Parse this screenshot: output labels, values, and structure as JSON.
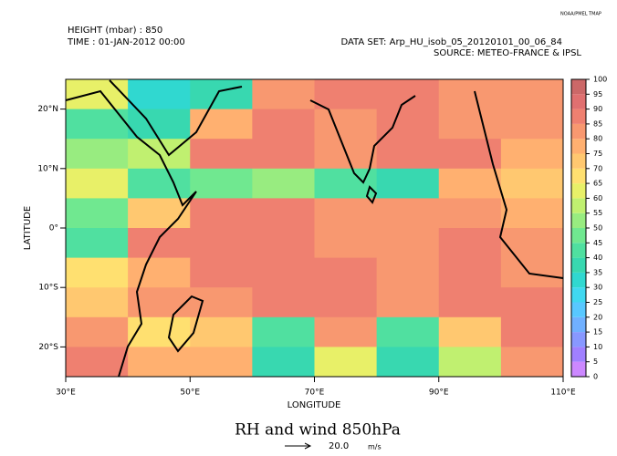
{
  "chart_data": {
    "type": "heatmap",
    "title": "RH and wind 850hPa",
    "credit": "NOAA/PMEL TMAP",
    "height_label": "HEIGHT (mbar) : 850",
    "time_label": "TIME : 01-JAN-2012 00:00",
    "dataset_label": "DATA SET: Arp_HU_isob_05_20120101_00_06_84",
    "source_label": "SOURCE: METEO-FRANCE & IPSL",
    "x_label": "LONGITUDE",
    "y_label": "LATITUDE",
    "vector_key": "20.0",
    "vector_unit": "m/s",
    "xlim": [
      30,
      110
    ],
    "ylim": [
      -25,
      25
    ],
    "xticks": [
      {
        "value": 30,
        "label": "30°E"
      },
      {
        "value": 50,
        "label": "50°E"
      },
      {
        "value": 70,
        "label": "70°E"
      },
      {
        "value": 90,
        "label": "90°E"
      },
      {
        "value": 110,
        "label": "110°E"
      }
    ],
    "yticks": [
      {
        "value": 20,
        "label": "20°N"
      },
      {
        "value": 10,
        "label": "10°N"
      },
      {
        "value": 0,
        "label": "0°"
      },
      {
        "value": -10,
        "label": "10°S"
      },
      {
        "value": -20,
        "label": "20°S"
      }
    ],
    "x": [
      35,
      45,
      55,
      65,
      75,
      85,
      95,
      105
    ],
    "y": [
      22.5,
      17.5,
      12.5,
      7.5,
      2.5,
      -2.5,
      -7.5,
      -12.5,
      -17.5,
      -22.5
    ],
    "values": [
      [
        60,
        30,
        35,
        80,
        85,
        85,
        80,
        80
      ],
      [
        40,
        35,
        75,
        85,
        80,
        85,
        80,
        80
      ],
      [
        50,
        55,
        85,
        85,
        80,
        85,
        85,
        75
      ],
      [
        60,
        40,
        45,
        50,
        40,
        35,
        75,
        70
      ],
      [
        45,
        70,
        85,
        85,
        80,
        80,
        80,
        75
      ],
      [
        40,
        85,
        85,
        85,
        80,
        80,
        85,
        80
      ],
      [
        65,
        75,
        85,
        85,
        85,
        80,
        85,
        80
      ],
      [
        70,
        80,
        80,
        85,
        85,
        80,
        85,
        85
      ],
      [
        80,
        65,
        70,
        40,
        80,
        40,
        70,
        85
      ],
      [
        85,
        75,
        75,
        35,
        60,
        35,
        55,
        80
      ]
    ],
    "colorbar_ticks": [
      0,
      5,
      10,
      15,
      20,
      25,
      30,
      35,
      40,
      45,
      50,
      55,
      60,
      65,
      70,
      75,
      80,
      85,
      90,
      95,
      100
    ],
    "colors": [
      "#cc88ff",
      "#a080ff",
      "#8898ff",
      "#70b0ff",
      "#58c8ff",
      "#40d8f0",
      "#30d8d0",
      "#38d8b0",
      "#50e0a0",
      "#70e890",
      "#98ec80",
      "#c0f070",
      "#e8f068",
      "#ffe070",
      "#ffc870",
      "#ffb070",
      "#f89870",
      "#ef8070",
      "#e07070",
      "#cc6868"
    ]
  }
}
